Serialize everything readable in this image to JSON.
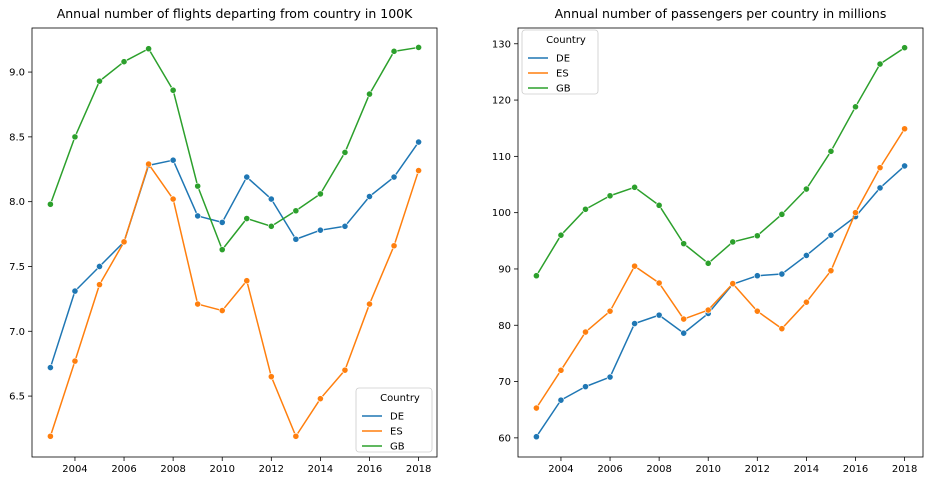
{
  "chart_data": [
    {
      "type": "line",
      "title": "Annual number of flights departing from country in 100K",
      "xlabel": "",
      "ylabel": "",
      "x": [
        2003,
        2004,
        2005,
        2006,
        2007,
        2008,
        2009,
        2010,
        2011,
        2012,
        2013,
        2014,
        2015,
        2016,
        2017,
        2018
      ],
      "xticks": [
        2004,
        2006,
        2008,
        2010,
        2012,
        2014,
        2016,
        2018
      ],
      "yticks": [
        6.5,
        7.0,
        7.5,
        8.0,
        8.5,
        9.0
      ],
      "ytick_labels": [
        "6.5",
        "7.0",
        "7.5",
        "8.0",
        "8.5",
        "9.0"
      ],
      "xlim": [
        2002.25,
        2018.75
      ],
      "ylim": [
        6.03,
        9.34
      ],
      "grid": false,
      "legend": {
        "title": "Country",
        "placement": "lower-right"
      },
      "series": [
        {
          "name": "DE",
          "color": "#1f77b4",
          "values": [
            6.72,
            7.31,
            7.5,
            7.69,
            8.28,
            8.32,
            7.89,
            7.84,
            8.19,
            8.02,
            7.71,
            7.78,
            7.81,
            8.04,
            8.19,
            8.46
          ]
        },
        {
          "name": "ES",
          "color": "#ff7f0e",
          "values": [
            6.19,
            6.77,
            7.36,
            7.69,
            8.29,
            8.02,
            7.21,
            7.16,
            7.39,
            6.65,
            6.19,
            6.48,
            6.7,
            7.21,
            7.66,
            8.24
          ]
        },
        {
          "name": "GB",
          "color": "#2ca02c",
          "values": [
            7.98,
            8.5,
            8.93,
            9.08,
            9.18,
            8.86,
            8.12,
            7.63,
            7.87,
            7.81,
            7.93,
            8.06,
            8.38,
            8.83,
            9.16,
            9.19
          ]
        }
      ]
    },
    {
      "type": "line",
      "title": "Annual number of passengers per country in millions",
      "xlabel": "",
      "ylabel": "",
      "x": [
        2003,
        2004,
        2005,
        2006,
        2007,
        2008,
        2009,
        2010,
        2011,
        2012,
        2013,
        2014,
        2015,
        2016,
        2017,
        2018
      ],
      "xticks": [
        2004,
        2006,
        2008,
        2010,
        2012,
        2014,
        2016,
        2018
      ],
      "yticks": [
        60,
        70,
        80,
        90,
        100,
        110,
        120,
        130
      ],
      "ytick_labels": [
        "60",
        "70",
        "80",
        "90",
        "100",
        "110",
        "120",
        "130"
      ],
      "xlim": [
        2002.25,
        2018.75
      ],
      "ylim": [
        56.6,
        132.8
      ],
      "grid": false,
      "legend": {
        "title": "Country",
        "placement": "upper-left"
      },
      "series": [
        {
          "name": "DE",
          "color": "#1f77b4",
          "values": [
            60.2,
            66.7,
            69.1,
            70.8,
            80.3,
            81.8,
            78.6,
            82.1,
            87.3,
            88.8,
            89.1,
            92.4,
            96.0,
            99.3,
            104.4,
            108.3
          ]
        },
        {
          "name": "ES",
          "color": "#ff7f0e",
          "values": [
            65.3,
            72.0,
            78.8,
            82.5,
            90.5,
            87.5,
            81.1,
            82.7,
            87.4,
            82.5,
            79.4,
            84.1,
            89.7,
            100.0,
            108.0,
            114.9
          ]
        },
        {
          "name": "GB",
          "color": "#2ca02c",
          "values": [
            88.8,
            96.0,
            100.6,
            103.0,
            104.5,
            101.3,
            94.5,
            91.0,
            94.8,
            95.9,
            99.7,
            104.2,
            110.9,
            118.8,
            126.4,
            129.3
          ]
        }
      ]
    }
  ]
}
